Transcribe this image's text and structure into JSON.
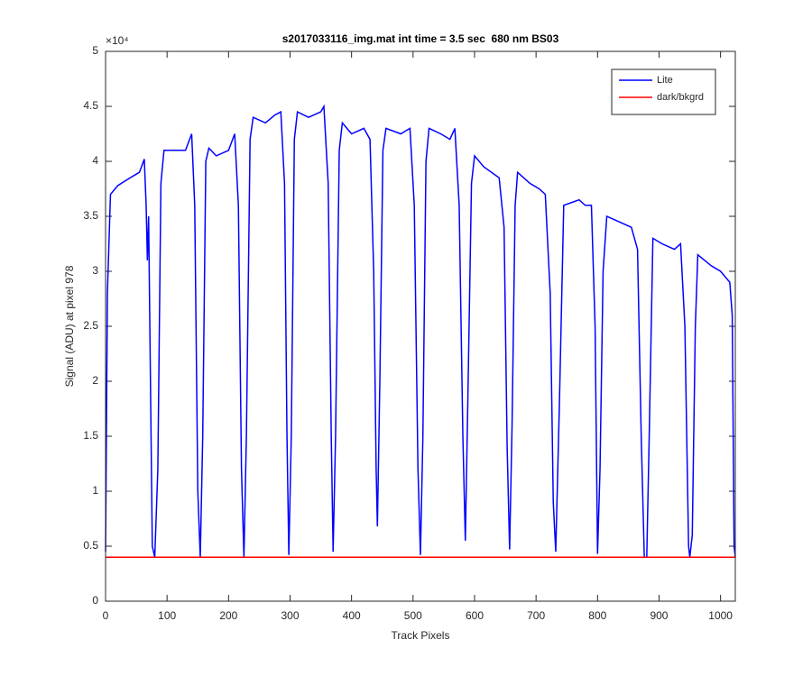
{
  "chart_data": {
    "type": "line",
    "title": "s2017033116_img.mat int time = 3.5 sec  680 nm BS03",
    "x_label": "Track Pixels",
    "y_label": "Signal (ADU) at pixel 978",
    "y_exponent": "×10⁴",
    "xlim": [
      0,
      1024
    ],
    "xticks": [
      0,
      100,
      200,
      300,
      400,
      500,
      600,
      700,
      800,
      900,
      1000
    ],
    "ylim": [
      0,
      5
    ],
    "yticks": [
      0,
      0.5,
      1,
      1.5,
      2,
      2.5,
      3,
      3.5,
      4,
      4.5,
      5
    ],
    "grid": false,
    "legend": "northeast",
    "series": [
      {
        "name": "Lite",
        "color": "#0000ff",
        "x": [
          0,
          3,
          8,
          20,
          40,
          55,
          63,
          66,
          68,
          70,
          72,
          76,
          80,
          85,
          90,
          95,
          110,
          130,
          140,
          145,
          150,
          154,
          158,
          163,
          168,
          180,
          200,
          210,
          216,
          221,
          225,
          229,
          235,
          240,
          260,
          275,
          285,
          291,
          295,
          298,
          302,
          307,
          312,
          330,
          350,
          355,
          362,
          367,
          370,
          374,
          380,
          385,
          400,
          420,
          430,
          436,
          440,
          442,
          446,
          451,
          456,
          480,
          495,
          502,
          508,
          512,
          516,
          521,
          526,
          545,
          560,
          568,
          575,
          581,
          585,
          589,
          595,
          600,
          615,
          640,
          648,
          653,
          657,
          661,
          666,
          670,
          690,
          705,
          715,
          723,
          728,
          732,
          738,
          745,
          770,
          780,
          790,
          796,
          800,
          804,
          809,
          815,
          835,
          855,
          865,
          871,
          876,
          880,
          884,
          890,
          905,
          925,
          935,
          942,
          948,
          950,
          954,
          959,
          963,
          985,
          1000,
          1015,
          1019,
          1022,
          1024
        ],
        "values": [
          0.45,
          2.8,
          3.7,
          3.78,
          3.85,
          3.9,
          4.02,
          3.6,
          3.1,
          3.5,
          2.5,
          0.5,
          0.4,
          1.2,
          3.8,
          4.1,
          4.1,
          4.1,
          4.25,
          3.6,
          1.0,
          0.4,
          1.5,
          4.0,
          4.12,
          4.05,
          4.1,
          4.25,
          3.6,
          1.2,
          0.4,
          1.5,
          4.2,
          4.4,
          4.35,
          4.42,
          4.45,
          3.8,
          1.5,
          0.42,
          1.5,
          4.2,
          4.45,
          4.4,
          4.45,
          4.5,
          3.8,
          1.5,
          0.45,
          1.5,
          4.1,
          4.35,
          4.25,
          4.3,
          4.2,
          3.0,
          1.2,
          0.68,
          2.0,
          4.1,
          4.3,
          4.25,
          4.3,
          3.6,
          1.2,
          0.42,
          1.5,
          4.0,
          4.3,
          4.25,
          4.2,
          4.3,
          3.6,
          1.5,
          0.55,
          1.8,
          3.8,
          4.05,
          3.95,
          3.85,
          3.4,
          1.4,
          0.47,
          1.6,
          3.6,
          3.9,
          3.8,
          3.75,
          3.7,
          2.8,
          0.9,
          0.45,
          1.8,
          3.6,
          3.65,
          3.6,
          3.6,
          2.5,
          0.43,
          1.2,
          3.0,
          3.5,
          3.45,
          3.4,
          3.2,
          1.5,
          0.4,
          0.4,
          1.5,
          3.3,
          3.25,
          3.2,
          3.25,
          2.5,
          0.5,
          0.4,
          0.6,
          2.5,
          3.15,
          3.05,
          3.0,
          2.9,
          2.6,
          0.5,
          0.4
        ]
      },
      {
        "name": "dark/bkgrd",
        "color": "#ff0000",
        "x": [
          0,
          1024
        ],
        "values": [
          0.4,
          0.4
        ]
      }
    ]
  }
}
